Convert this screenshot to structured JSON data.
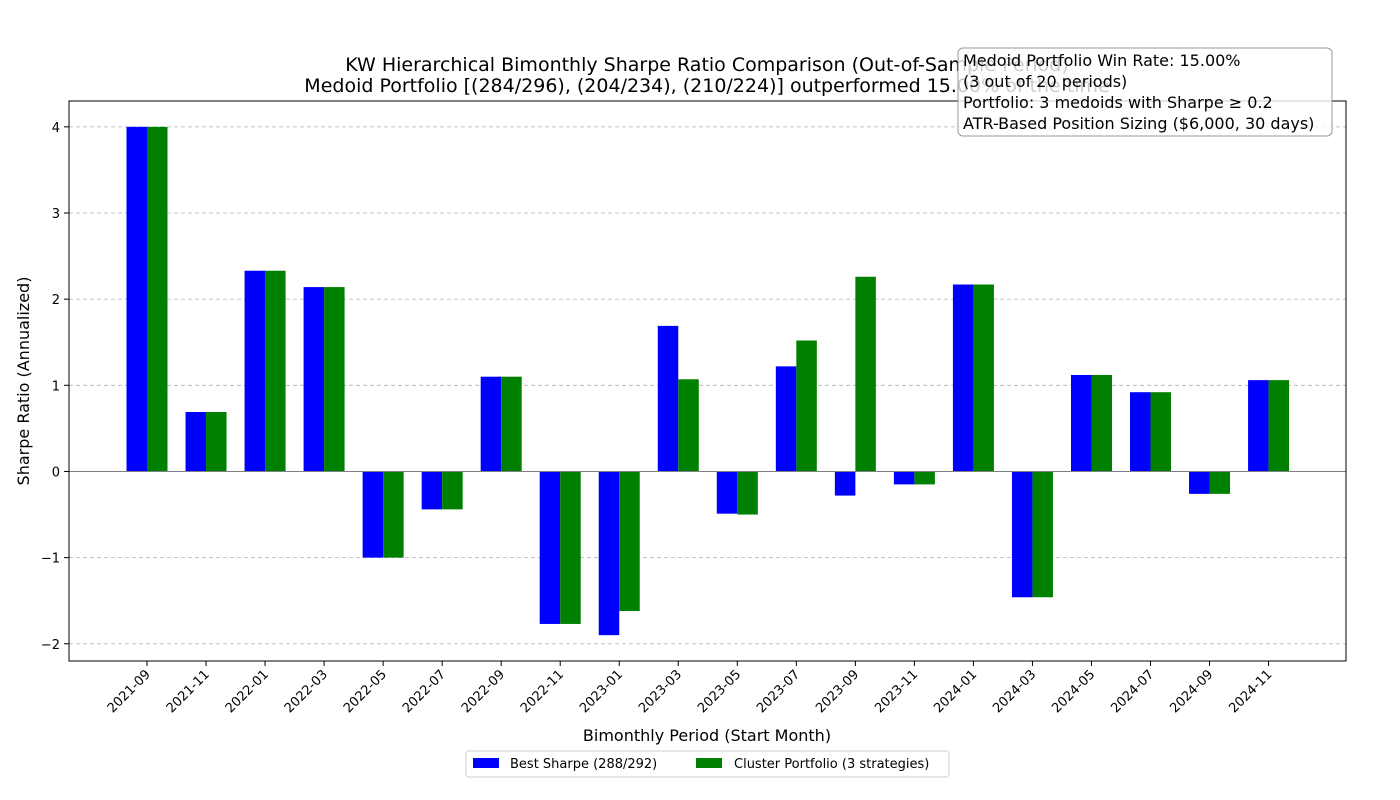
{
  "chart_data": {
    "type": "bar",
    "title": "KW Hierarchical Bimonthly Sharpe Ratio Comparison (Out-of-Sample Period)",
    "subtitle": "Medoid Portfolio [(284/296), (204/234), (210/224)] outperformed 15.00% of the time",
    "xlabel": "Bimonthly Period (Start Month)",
    "ylabel": "Sharpe Ratio (Annualized)",
    "ylim": [
      -2.2,
      4.3
    ],
    "yticks": [
      4,
      3,
      2,
      1,
      0,
      -1,
      -2
    ],
    "ytick_labels": [
      "4",
      "3",
      "2",
      "1",
      "0",
      "−1",
      "−2"
    ],
    "grid": "horizontal-dashed",
    "legend_position": "bottom-center",
    "categories": [
      "2021-09",
      "2021-11",
      "2022-01",
      "2022-03",
      "2022-05",
      "2022-07",
      "2022-09",
      "2022-11",
      "2023-01",
      "2023-03",
      "2023-05",
      "2023-07",
      "2023-09",
      "2023-11",
      "2024-01",
      "2024-03",
      "2024-05",
      "2024-07",
      "2024-09",
      "2024-11"
    ],
    "series": [
      {
        "name": "Best Sharpe (288/292)",
        "color": "#0000ff",
        "values": [
          4.0,
          0.69,
          2.33,
          2.14,
          -1.0,
          -0.44,
          1.1,
          -1.77,
          -1.9,
          1.69,
          -0.49,
          1.22,
          -0.28,
          -0.15,
          2.17,
          -1.46,
          1.12,
          0.92,
          -0.26,
          1.06
        ]
      },
      {
        "name": "Cluster Portfolio (3 strategies)",
        "color": "#008000",
        "values": [
          4.0,
          0.69,
          2.33,
          2.14,
          -1.0,
          -0.44,
          1.1,
          -1.77,
          -1.62,
          1.07,
          -0.5,
          1.52,
          2.26,
          -0.15,
          2.17,
          -1.46,
          1.12,
          0.92,
          -0.26,
          1.06
        ]
      }
    ],
    "annotation": {
      "lines": [
        "Medoid Portfolio Win Rate: 15.00%",
        "(3 out of 20 periods)",
        "Portfolio: 3 medoids with Sharpe ≥ 0.2",
        "ATR-Based Position Sizing ($6,000, 30 days)"
      ]
    }
  }
}
